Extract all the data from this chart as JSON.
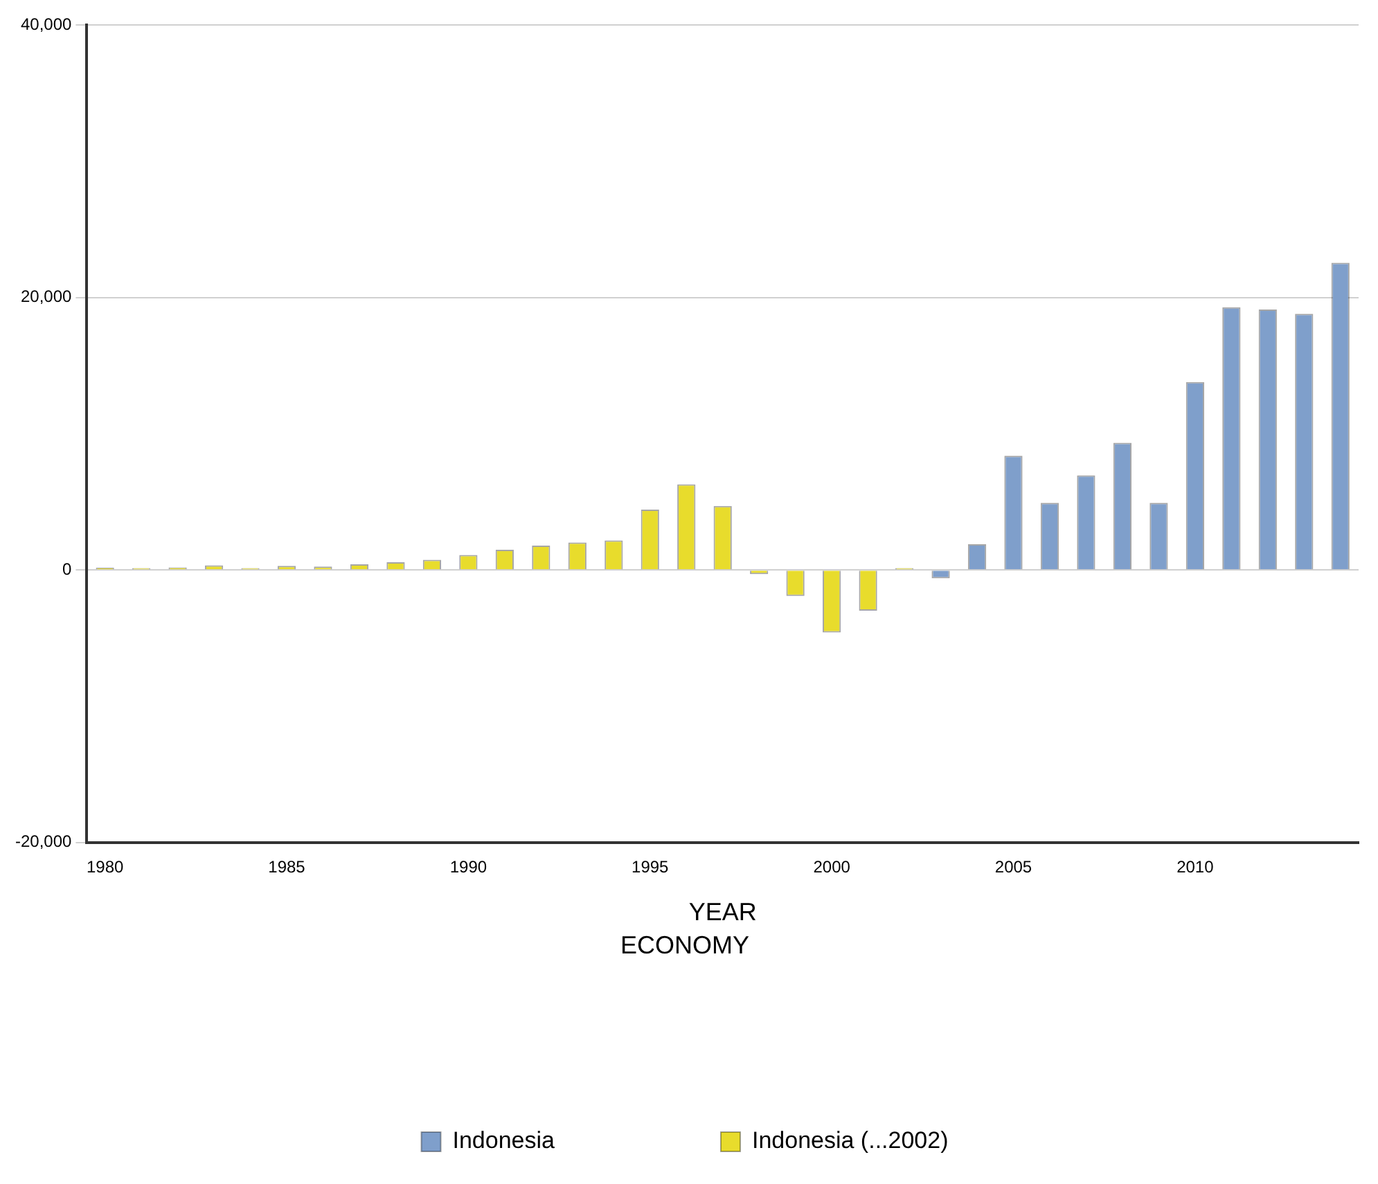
{
  "chart_data": {
    "type": "bar",
    "categories": [
      "1980",
      null,
      null,
      null,
      null,
      "1985",
      null,
      null,
      null,
      null,
      "1990",
      null,
      null,
      null,
      null,
      "1995",
      null,
      null,
      null,
      null,
      "2000",
      null,
      null,
      null,
      null,
      "2005",
      null,
      null,
      null,
      null,
      "2010",
      null,
      null,
      null,
      null
    ],
    "series": [
      {
        "name": "Indonesia",
        "color": "#7f9fcb",
        "values": [
          null,
          null,
          null,
          null,
          null,
          null,
          null,
          null,
          null,
          null,
          null,
          null,
          null,
          null,
          null,
          null,
          null,
          null,
          null,
          null,
          null,
          null,
          null,
          -600,
          1900,
          8390,
          4940,
          6960,
          9350,
          4940,
          13810,
          19290,
          19130,
          18810,
          22560
        ]
      },
      {
        "name": "Indonesia (...2002)",
        "color": "#e8dc2c",
        "values": [
          180,
          150,
          200,
          350,
          150,
          310,
          260,
          420,
          570,
          750,
          1110,
          1490,
          1790,
          2030,
          2180,
          4440,
          6290,
          4700,
          -300,
          -1900,
          -4580,
          -2980,
          150,
          null,
          null,
          null,
          null,
          null,
          null,
          null,
          null,
          null,
          null,
          null,
          null
        ]
      }
    ],
    "xlabel": "YEAR",
    "legend_title": "ECONOMY",
    "ylim": [
      -20000,
      40000
    ],
    "yticks": [
      {
        "value": -20000,
        "label": "-20,000"
      },
      {
        "value": 0,
        "label": "0"
      },
      {
        "value": 20000,
        "label": "20,000"
      },
      {
        "value": 40000,
        "label": "40,000"
      }
    ],
    "grid": "y",
    "legend": "bottom"
  }
}
